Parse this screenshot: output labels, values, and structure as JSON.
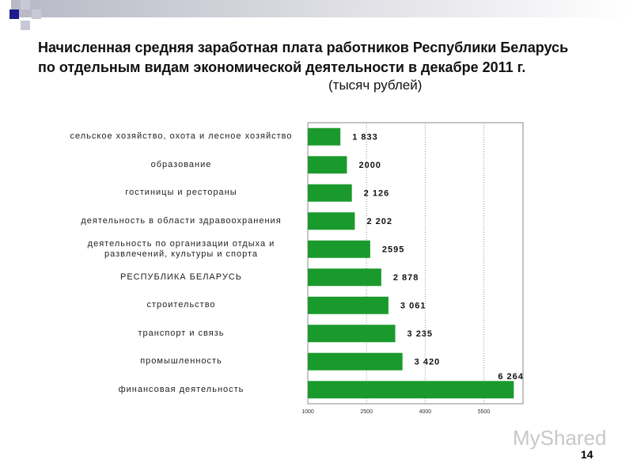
{
  "slide_number": "14",
  "watermark": "MyShared",
  "chart_data": {
    "type": "bar",
    "orientation": "horizontal",
    "title": "Начисленная средняя заработная плата работников Республики Беларусь по отдельным видам экономической деятельности в декабре 2011 г.",
    "subtitle": "(тысяч рублей)",
    "categories": [
      "сельское хозяйство, охота и лесное хозяйство",
      "образование",
      "гостиницы и рестораны",
      "деятельность в области здравоохранения",
      "деятельность по организации отдыха и развлечений, культуры и спорта",
      "РЕСПУБЛИКА БЕЛАРУСЬ",
      "строительство",
      "транспорт и связь",
      "промышленность",
      "финансовая деятельность"
    ],
    "values": [
      1833,
      2000,
      2126,
      2202,
      2595,
      2878,
      3061,
      3235,
      3420,
      6264
    ],
    "value_labels": [
      "1 833",
      "2000",
      "2 126",
      "2 202",
      "2595",
      "2 878",
      "3 061",
      "3 235",
      "3 420",
      "6 264"
    ],
    "color": "#1a9a2c",
    "xlim": [
      1000,
      6500
    ],
    "xticks": [
      1000,
      2500,
      4000,
      5500
    ],
    "grid": true
  }
}
